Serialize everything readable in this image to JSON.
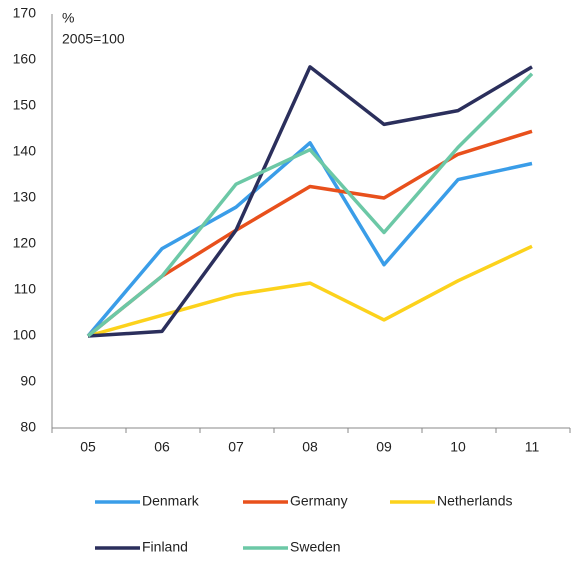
{
  "chart_data": {
    "type": "line",
    "annotations": [
      "%",
      "2005=100"
    ],
    "categories": [
      "05",
      "06",
      "07",
      "08",
      "09",
      "10",
      "11"
    ],
    "series": [
      {
        "name": "Denmark",
        "color": "#3a9de8",
        "values": [
          100,
          119,
          128,
          142,
          115.5,
          134,
          137.5
        ]
      },
      {
        "name": "Germany",
        "color": "#e8501c",
        "values": [
          100,
          113,
          123,
          132.5,
          130,
          139.5,
          144.5
        ]
      },
      {
        "name": "Netherlands",
        "color": "#fcd21c",
        "values": [
          100,
          104.5,
          109,
          111.5,
          103.5,
          112,
          119.5
        ]
      },
      {
        "name": "Finland",
        "color": "#2b2f5c",
        "values": [
          100,
          101,
          123,
          158.5,
          146,
          149,
          158.5
        ]
      },
      {
        "name": "Sweden",
        "color": "#6cc8a6",
        "values": [
          100,
          113,
          133,
          140.5,
          122.5,
          141,
          157
        ]
      }
    ],
    "ylim": [
      80,
      170
    ],
    "yticks": [
      80,
      90,
      100,
      110,
      120,
      130,
      140,
      150,
      160,
      170
    ],
    "grid": false,
    "legend": "bottom"
  }
}
